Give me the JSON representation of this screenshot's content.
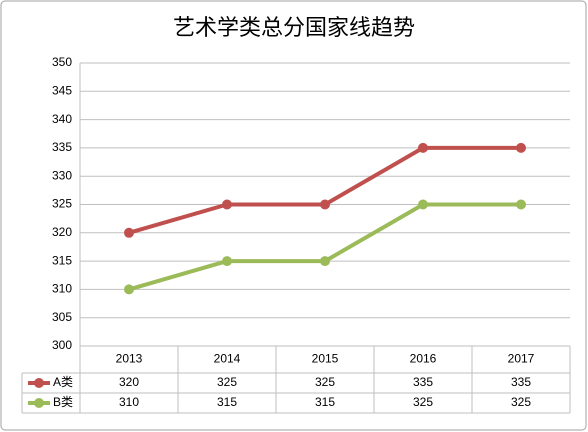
{
  "chart_data": {
    "type": "line",
    "title": "艺术学类总分国家线趋势",
    "categories": [
      "2013",
      "2014",
      "2015",
      "2016",
      "2017"
    ],
    "series": [
      {
        "name": "A类",
        "color": "#c0504d",
        "values": [
          320,
          325,
          325,
          335,
          335
        ]
      },
      {
        "name": "B类",
        "color": "#9bbb59",
        "values": [
          310,
          315,
          315,
          325,
          325
        ]
      }
    ],
    "ylim": [
      300,
      350
    ],
    "yticks": [
      300,
      305,
      310,
      315,
      320,
      325,
      330,
      335,
      340,
      345,
      350
    ],
    "grid": true,
    "legend": "table"
  }
}
